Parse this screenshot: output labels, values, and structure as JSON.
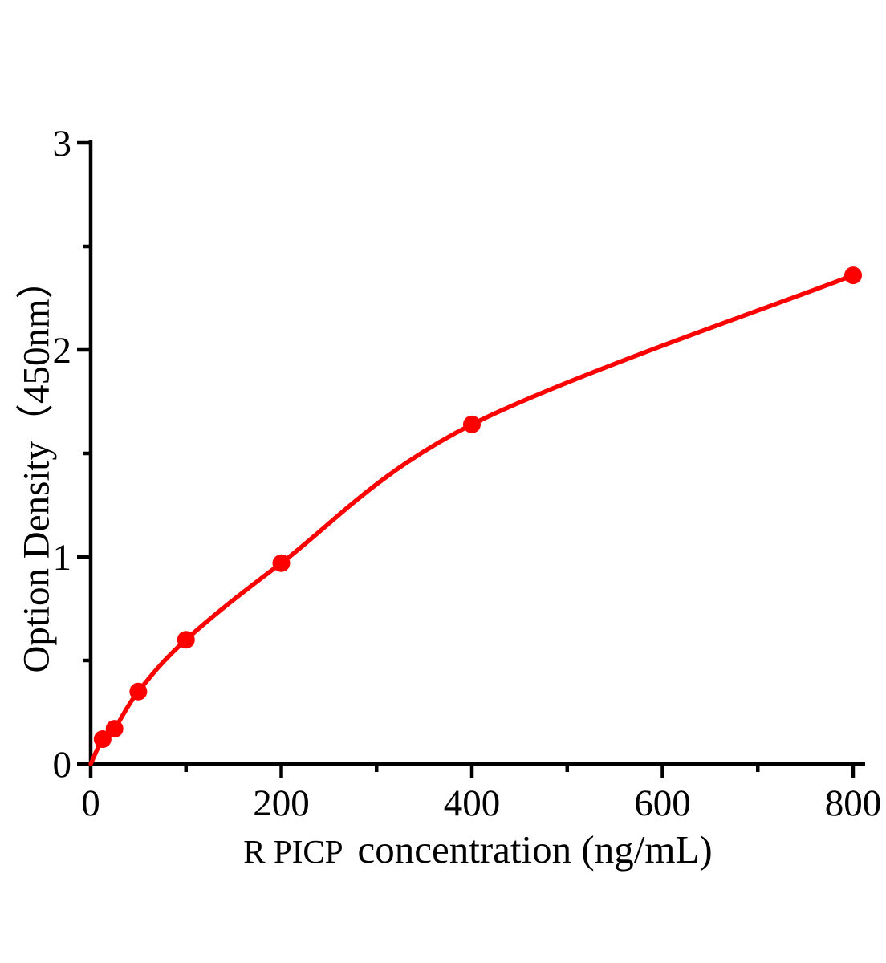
{
  "figure": {
    "background": "#ffffff"
  },
  "labels": {
    "xlabel_part1": "R PICP",
    "xlabel_part2": "concentration (ng/mL)",
    "ylabel": "Option Density（450nm）"
  },
  "chart_data": {
    "type": "scatter",
    "title": "",
    "xlabel": "R PICP  concentration (ng/mL)",
    "ylabel": "Option Density（450nm）",
    "xlim": [
      0,
      800
    ],
    "ylim": [
      0,
      3
    ],
    "x_major_ticks": [
      0,
      200,
      400,
      600,
      800
    ],
    "x_minor_ticks": [
      100,
      300,
      500,
      700
    ],
    "y_major_ticks": [
      0,
      1,
      2,
      3
    ],
    "y_minor_ticks": [
      0.5,
      1.5,
      2.5
    ],
    "grid": false,
    "legend": false,
    "curve_color": "#ff0000",
    "point_color": "#ff0000",
    "axis_color": "#000000",
    "curve_start": {
      "x": 0,
      "y": 0
    },
    "points": [
      {
        "x": 12.5,
        "y": 0.12
      },
      {
        "x": 25,
        "y": 0.17
      },
      {
        "x": 50,
        "y": 0.35
      },
      {
        "x": 100,
        "y": 0.6
      },
      {
        "x": 200,
        "y": 0.97
      },
      {
        "x": 400,
        "y": 1.64
      },
      {
        "x": 800,
        "y": 2.36
      }
    ]
  }
}
